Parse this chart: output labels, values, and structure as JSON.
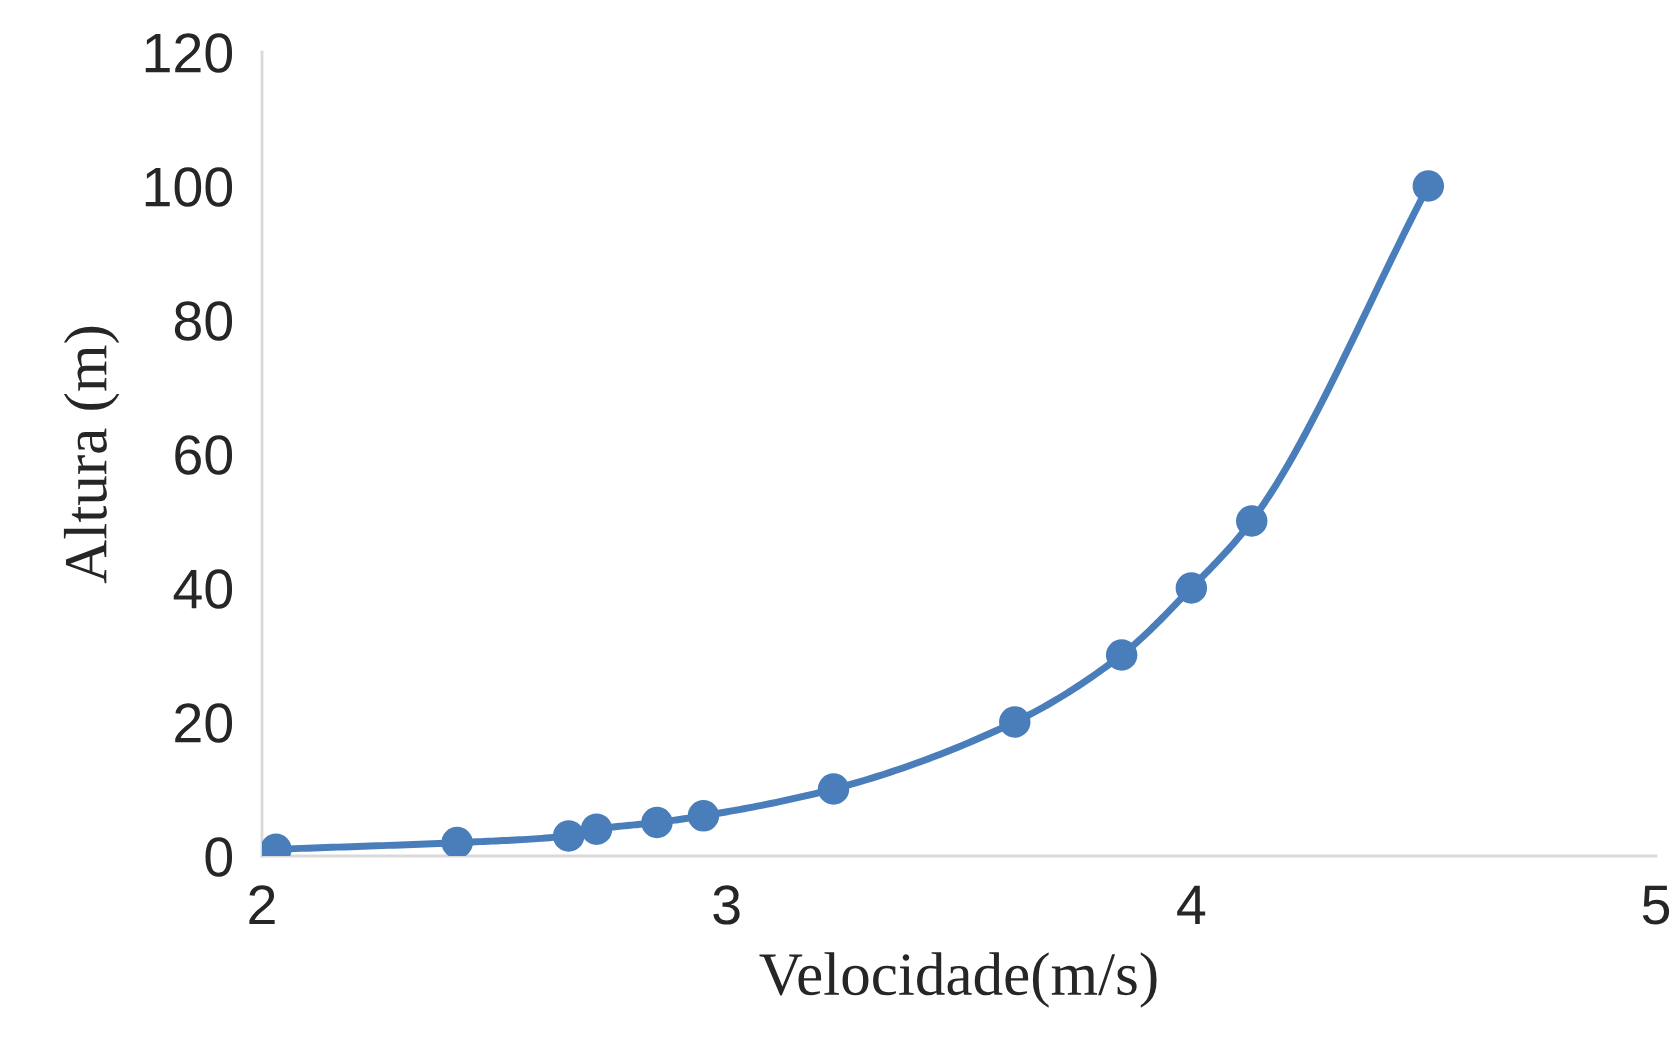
{
  "chart_data": {
    "type": "line",
    "xlabel": "Velocidade(m/s)",
    "ylabel": "Altura (m)",
    "x": [
      2.03,
      2.42,
      2.66,
      2.72,
      2.85,
      2.95,
      3.23,
      3.62,
      3.85,
      4.0,
      4.13,
      4.51
    ],
    "series": [
      {
        "color": "#4a7ebb",
        "values": [
          1,
          2,
          3,
          4,
          5,
          6,
          10,
          20,
          30,
          40,
          50,
          100
        ]
      }
    ],
    "xlim": [
      2,
      5
    ],
    "xticks": [
      2,
      3,
      4,
      5
    ],
    "ylim": [
      0,
      120
    ],
    "yticks": [
      0,
      20,
      40,
      60,
      80,
      100,
      120
    ],
    "grid": false,
    "legend": false,
    "marker": "circle",
    "line_style": "solid"
  }
}
